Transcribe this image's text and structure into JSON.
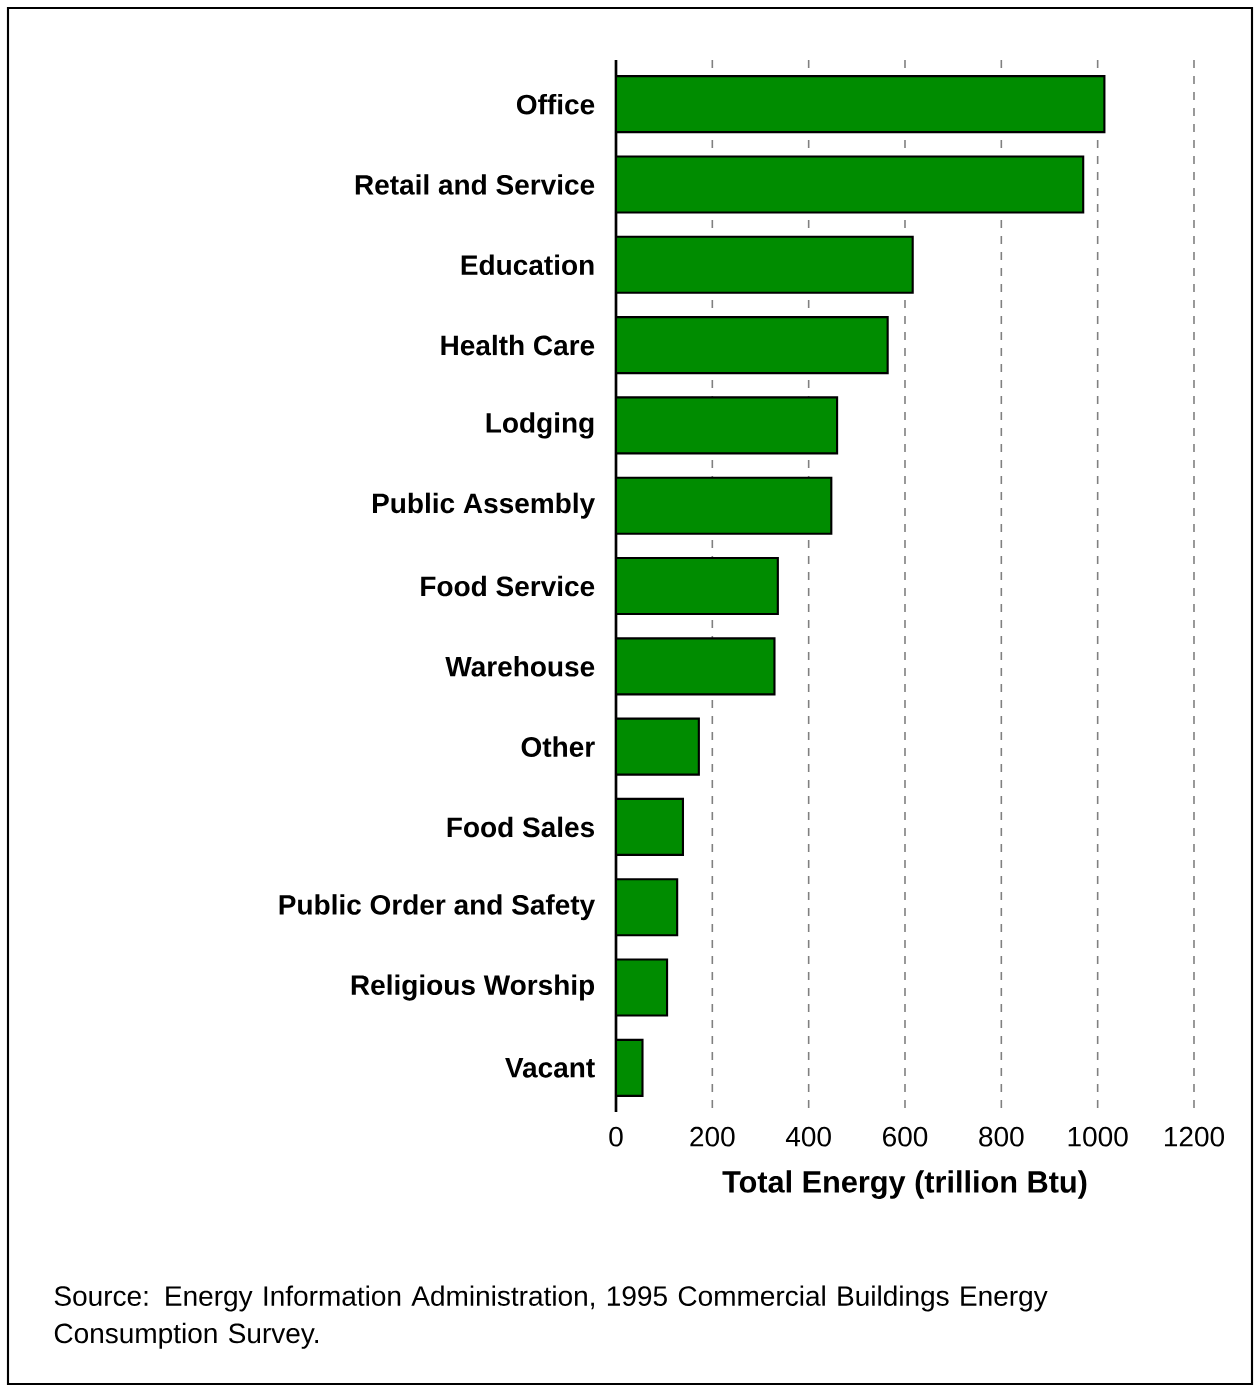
{
  "chart_data": {
    "type": "bar",
    "orientation": "horizontal",
    "categories": [
      "Office",
      "Retail and Service",
      "Education",
      "Health Care",
      "Lodging",
      "Public Assembly",
      "Food Service",
      "Warehouse",
      "Other",
      "Food Sales",
      "Public Order and Safety",
      "Religious Worship",
      "Vacant"
    ],
    "values": [
      1014,
      970,
      616,
      564,
      459,
      447,
      336,
      329,
      172,
      139,
      127,
      106,
      55
    ],
    "color": "#008c00",
    "xlabel": "Total Energy (trillion Btu)",
    "xlim": [
      0,
      1200
    ],
    "xticks": [
      0,
      200,
      400,
      600,
      800,
      1000,
      1200
    ],
    "grid": "x",
    "annotations": [
      "Source:  Energy Information Administration, 1995 Commercial Buildings Energy Consumption Survey."
    ]
  }
}
